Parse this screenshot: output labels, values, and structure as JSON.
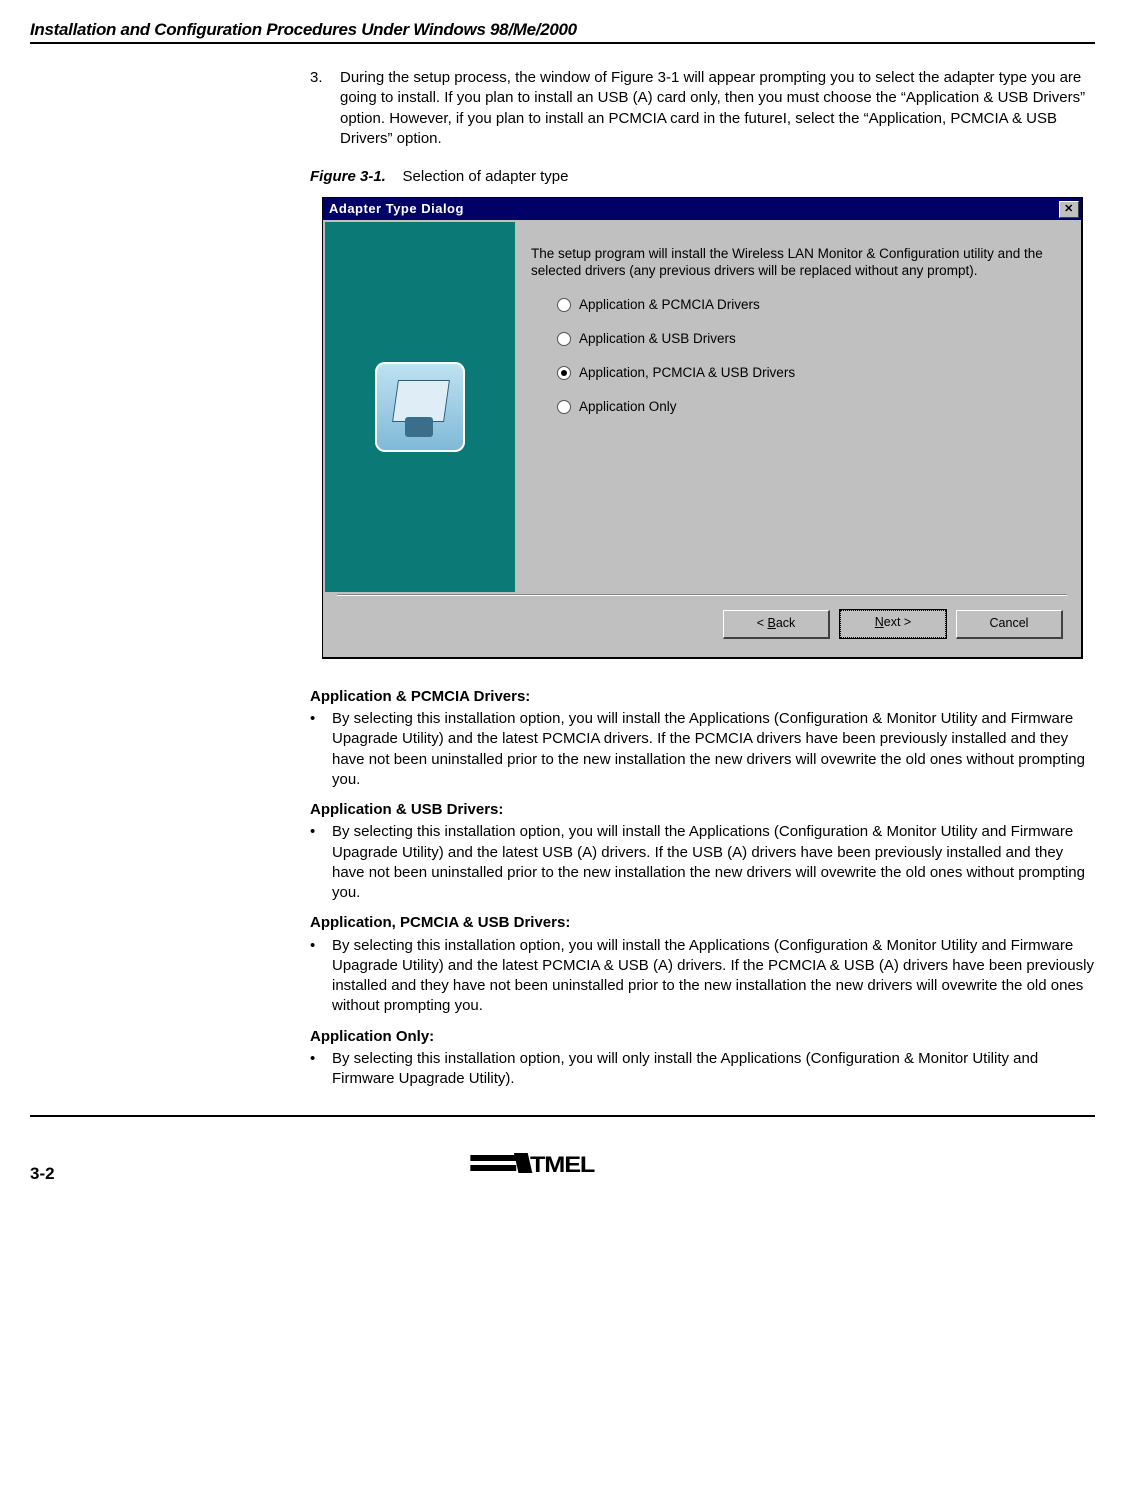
{
  "header": {
    "title": "Installation and Configuration Procedures Under Windows 98/Me/2000"
  },
  "step": {
    "number": "3.",
    "text": "During the setup process, the window of Figure 3-1 will appear prompting you to select the adapter type you are going to install. If you plan to install an USB (A) card only, then you must choose the “Application & USB Drivers” option. However, if you plan to install an PCMCIA card in the futureI, select the “Application, PCMCIA & USB Drivers” option."
  },
  "figure": {
    "label": "Figure 3-1.",
    "caption": "Selection of adapter type"
  },
  "dialog": {
    "title": "Adapter Type Dialog",
    "close_glyph": "✕",
    "description": "The setup program will install the Wireless LAN Monitor & Configuration utility and the selected drivers (any previous drivers will be replaced without any prompt).",
    "options": [
      {
        "label": "Application & PCMCIA Drivers",
        "selected": false
      },
      {
        "label": "Application & USB Drivers",
        "selected": false
      },
      {
        "label": "Application, PCMCIA & USB Drivers",
        "selected": true
      },
      {
        "label": "Application Only",
        "selected": false
      }
    ],
    "buttons": {
      "back": "< Back",
      "next": "Next >",
      "cancel": "Cancel"
    }
  },
  "sections": [
    {
      "heading": "Application & PCMCIA Drivers:",
      "body": "By selecting this installation option, you will install the Applications (Configuration & Monitor Utility and Firmware Upagrade Utility) and the latest PCMCIA drivers. If the PCMCIA drivers have been previously installed and they have not been uninstalled prior to the new installation the new drivers will ovewrite the old ones without prompting you."
    },
    {
      "heading": "Application & USB Drivers:",
      "body": "By selecting this installation option, you will install the Applications (Configuration & Monitor Utility and Firmware Upagrade Utility) and the latest USB (A) drivers. If the USB (A) drivers have been previously installed and they have not been uninstalled prior to the new installation the new drivers will ovewrite the old ones without prompting you."
    },
    {
      "heading": "Application, PCMCIA & USB Drivers:",
      "body": "By selecting this installation option, you will install the Applications (Configuration & Monitor Utility and Firmware Upagrade Utility) and the latest PCMCIA & USB (A) drivers. If the PCMCIA & USB (A) drivers have been previously installed and they have not been uninstalled prior to the new installation the new drivers will ovewrite the old ones without prompting you."
    },
    {
      "heading": "Application Only:",
      "body": "By selecting this installation option, you will only install the Applications (Configuration & Monitor Utility and Firmware Upagrade Utility)."
    }
  ],
  "footer": {
    "page": "3-2",
    "logo_text": "ATMEL"
  },
  "style": {
    "body_font_size_pt": 15,
    "dialog_side_color": "#0b7a77",
    "titlebar_color": "#000066",
    "win_bg": "#c0c0c0",
    "page_bg": "#ffffff"
  }
}
